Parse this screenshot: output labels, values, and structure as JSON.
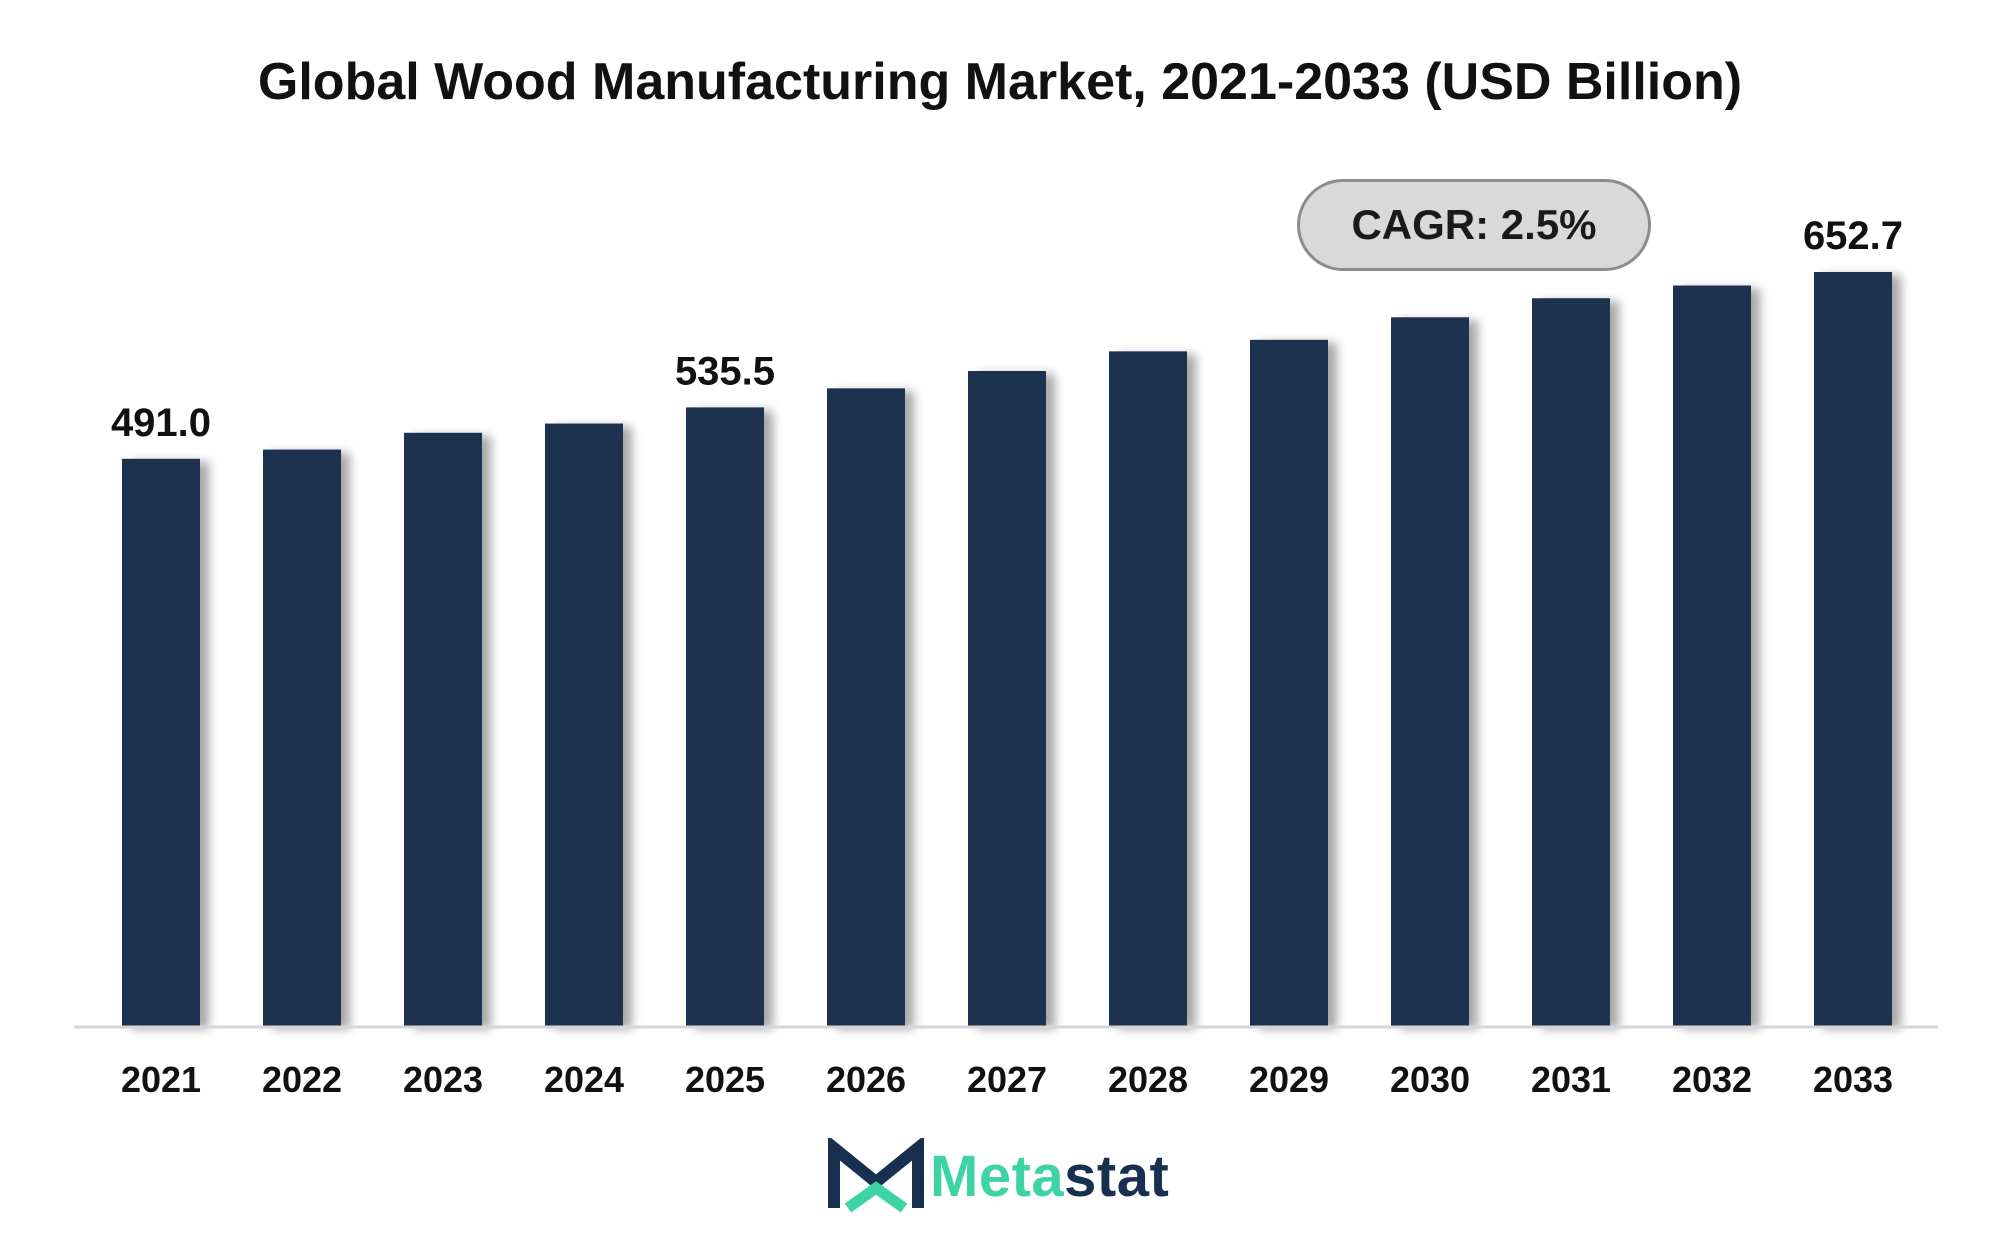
{
  "chart_data": {
    "type": "bar",
    "title": "Global Wood Manufacturing Market, 2021-2033 (USD Billion)",
    "categories": [
      "2021",
      "2022",
      "2023",
      "2024",
      "2025",
      "2026",
      "2027",
      "2028",
      "2029",
      "2030",
      "2031",
      "2032",
      "2033"
    ],
    "values": [
      491.0,
      499.0,
      513.5,
      521.5,
      535.5,
      552.0,
      567.0,
      584.0,
      594.0,
      613.5,
      630.0,
      641.0,
      652.7
    ],
    "data_labels": {
      "0": "491.0",
      "4": "535.5",
      "12": "652.7"
    },
    "annotation": "CAGR: 2.5%",
    "ylim": [
      0,
      652.7
    ],
    "grid": false,
    "legend": "none",
    "bar_color": "#1b3250",
    "xlabel": "",
    "ylabel": ""
  },
  "logo": {
    "text_a": "Meta",
    "text_b": "stat"
  }
}
